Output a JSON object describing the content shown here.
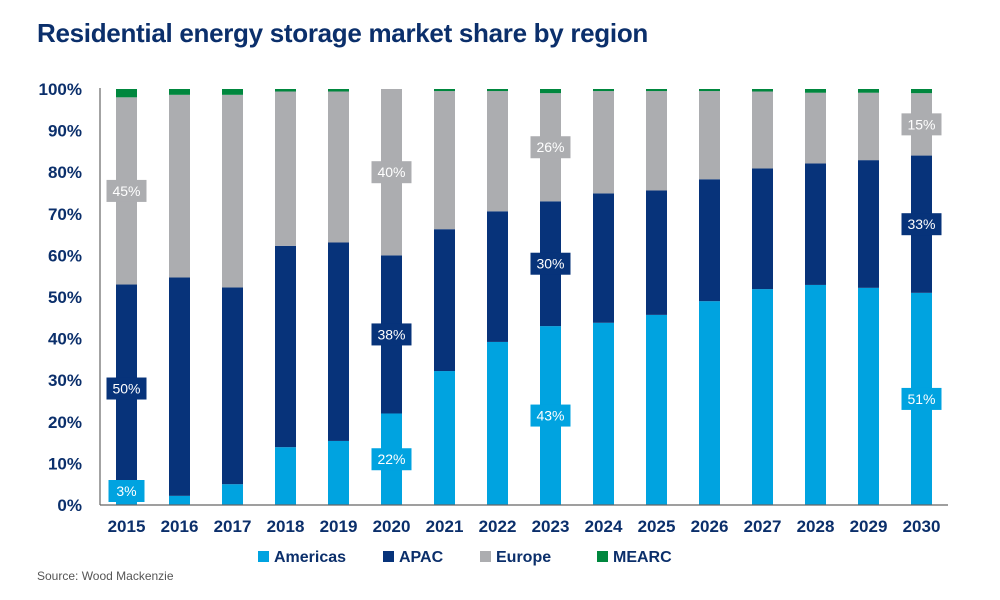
{
  "chart_data": {
    "type": "bar",
    "stacked": true,
    "title": "Residential energy storage market share by region",
    "source": "Source: Wood Mackenzie",
    "xlabel": "",
    "ylabel": "",
    "ylim": [
      0,
      100
    ],
    "yticks": [
      "0%",
      "10%",
      "20%",
      "30%",
      "40%",
      "50%",
      "60%",
      "70%",
      "80%",
      "90%",
      "100%"
    ],
    "grid": false,
    "legend_position": "bottom",
    "categories": [
      "2015",
      "2016",
      "2017",
      "2018",
      "2019",
      "2020",
      "2021",
      "2022",
      "2023",
      "2024",
      "2025",
      "2026",
      "2027",
      "2028",
      "2029",
      "2030"
    ],
    "series": [
      {
        "name": "Americas",
        "color": "#00a3e0",
        "values": [
          3,
          2.2,
          5,
          13.9,
          15.4,
          22,
          32.2,
          39.2,
          43,
          43.8,
          45.7,
          49,
          51.9,
          52.9,
          52.2,
          51
        ]
      },
      {
        "name": "APAC",
        "color": "#07337a",
        "values": [
          50,
          52.5,
          47.3,
          48.4,
          47.7,
          38,
          34.1,
          31.4,
          30,
          31.1,
          29.9,
          29.3,
          29,
          29.2,
          30.7,
          33
        ]
      },
      {
        "name": "Europe",
        "color": "#acadb0",
        "values": [
          45,
          43.9,
          46.3,
          37.1,
          36.3,
          40,
          33.2,
          28.9,
          26,
          24.6,
          23.9,
          21.2,
          18.5,
          17,
          16.2,
          15
        ]
      },
      {
        "name": "MEARC",
        "color": "#00873e",
        "values": [
          2,
          1.4,
          1.4,
          0.6,
          0.6,
          0.6,
          0.5,
          0.5,
          1,
          0.5,
          0.5,
          0.5,
          0.6,
          0.9,
          0.9,
          1
        ]
      }
    ],
    "data_labels": [
      {
        "category": "2015",
        "series": "Americas",
        "text": "3%"
      },
      {
        "category": "2015",
        "series": "APAC",
        "text": "50%"
      },
      {
        "category": "2015",
        "series": "Europe",
        "text": "45%"
      },
      {
        "category": "2020",
        "series": "Americas",
        "text": "22%"
      },
      {
        "category": "2020",
        "series": "APAC",
        "text": "38%"
      },
      {
        "category": "2020",
        "series": "Europe",
        "text": "40%"
      },
      {
        "category": "2023",
        "series": "Americas",
        "text": "43%"
      },
      {
        "category": "2023",
        "series": "APAC",
        "text": "30%"
      },
      {
        "category": "2023",
        "series": "Europe",
        "text": "26%"
      },
      {
        "category": "2030",
        "series": "Americas",
        "text": "51%"
      },
      {
        "category": "2030",
        "series": "APAC",
        "text": "33%"
      },
      {
        "category": "2030",
        "series": "Europe",
        "text": "15%"
      }
    ]
  }
}
